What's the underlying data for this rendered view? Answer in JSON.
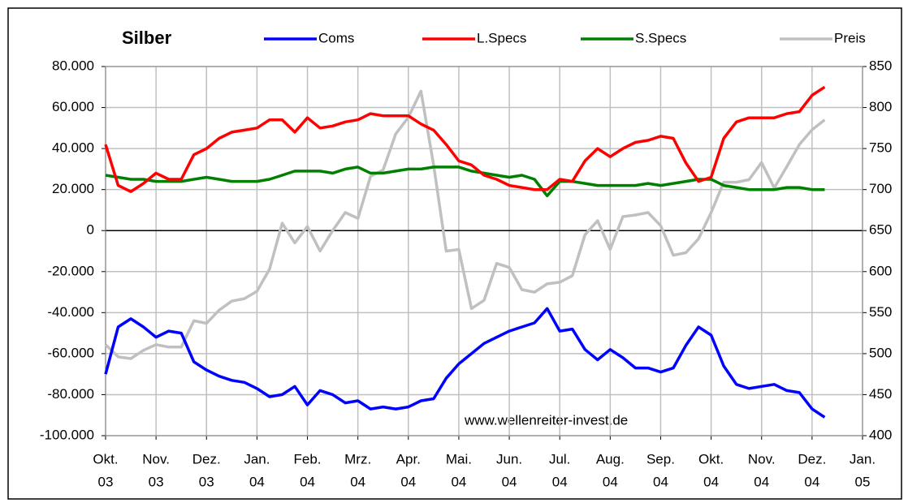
{
  "chart_data": {
    "type": "line",
    "title": "Silber",
    "annotation": "www.wellenreiter-invest.de",
    "x": [
      0,
      0.25,
      0.5,
      0.75,
      1,
      1.25,
      1.5,
      1.75,
      2,
      2.25,
      2.5,
      2.75,
      3,
      3.25,
      3.5,
      3.75,
      4,
      4.25,
      4.5,
      4.75,
      5,
      5.25,
      5.5,
      5.75,
      6,
      6.25,
      6.5,
      6.75,
      7,
      7.25,
      7.5,
      7.75,
      8,
      8.25,
      8.5,
      8.75,
      9,
      9.25,
      9.5,
      9.75,
      10,
      10.25,
      10.5,
      10.75,
      11,
      11.25,
      11.5,
      11.75,
      12,
      12.25,
      12.5,
      12.75,
      13,
      13.25,
      13.5,
      13.75,
      14,
      14.25
    ],
    "xlim": [
      0,
      15
    ],
    "xticks": [
      {
        "value": 0,
        "label": [
          "Okt.",
          "03"
        ]
      },
      {
        "value": 1,
        "label": [
          "Nov.",
          "03"
        ]
      },
      {
        "value": 2,
        "label": [
          "Dez.",
          "03"
        ]
      },
      {
        "value": 3,
        "label": [
          "Jan.",
          "04"
        ]
      },
      {
        "value": 4,
        "label": [
          "Feb.",
          "04"
        ]
      },
      {
        "value": 5,
        "label": [
          "Mrz.",
          "04"
        ]
      },
      {
        "value": 6,
        "label": [
          "Apr.",
          "04"
        ]
      },
      {
        "value": 7,
        "label": [
          "Mai.",
          "04"
        ]
      },
      {
        "value": 8,
        "label": [
          "Jun.",
          "04"
        ]
      },
      {
        "value": 9,
        "label": [
          "Jul.",
          "04"
        ]
      },
      {
        "value": 10,
        "label": [
          "Aug.",
          "04"
        ]
      },
      {
        "value": 11,
        "label": [
          "Sep.",
          "04"
        ]
      },
      {
        "value": 12,
        "label": [
          "Okt.",
          "04"
        ]
      },
      {
        "value": 13,
        "label": [
          "Nov.",
          "04"
        ]
      },
      {
        "value": 14,
        "label": [
          "Dez.",
          "04"
        ]
      },
      {
        "value": 15,
        "label": [
          "Jan.",
          "05"
        ]
      }
    ],
    "ylim": [
      -100000,
      80000
    ],
    "yticks": [
      {
        "value": -100000,
        "label": "-100.000"
      },
      {
        "value": -80000,
        "label": "-80.000"
      },
      {
        "value": -60000,
        "label": "-60.000"
      },
      {
        "value": -40000,
        "label": "-40.000"
      },
      {
        "value": -20000,
        "label": "-20.000"
      },
      0,
      {
        "value": 20000,
        "label": "20.000"
      },
      {
        "value": 40000,
        "label": "40.000"
      },
      {
        "value": 60000,
        "label": "60.000"
      },
      {
        "value": 80000,
        "label": "80.000"
      }
    ],
    "y2lim": [
      400,
      850
    ],
    "y2ticks": [
      400,
      450,
      500,
      550,
      600,
      650,
      700,
      750,
      800,
      850
    ],
    "grid": true,
    "series": [
      {
        "name": "Coms",
        "color": "#0000ff",
        "values": [
          -70000,
          -47000,
          -43000,
          -47000,
          -52000,
          -49000,
          -50000,
          -64000,
          -68000,
          -71000,
          -73000,
          -74000,
          -77000,
          -81000,
          -80000,
          -76000,
          -85000,
          -78000,
          -80000,
          -84000,
          -83000,
          -87000,
          -86000,
          -87000,
          -86000,
          -83000,
          -82000,
          -72000,
          -65000,
          -60000,
          -55000,
          -52000,
          -49000,
          -47000,
          -45000,
          -38000,
          -49000,
          -48000,
          -58000,
          -63000,
          -58000,
          -62000,
          -67000,
          -67000,
          -69000,
          -67000,
          -56000,
          -47000,
          -51000,
          -66000,
          -75000,
          -77000,
          -76000,
          -75000,
          -78000,
          -79000,
          -87000,
          -91000
        ]
      },
      {
        "name": "L.Specs",
        "color": "#ff0000",
        "values": [
          42000,
          22000,
          19000,
          23000,
          28000,
          25000,
          25000,
          37000,
          40000,
          45000,
          48000,
          49000,
          50000,
          54000,
          54000,
          48000,
          55000,
          50000,
          51000,
          53000,
          54000,
          57000,
          56000,
          56000,
          56000,
          52000,
          49000,
          42000,
          34000,
          32000,
          27000,
          25000,
          22000,
          21000,
          20000,
          20000,
          25000,
          24000,
          34000,
          40000,
          36000,
          40000,
          43000,
          44000,
          46000,
          45000,
          33000,
          24000,
          26000,
          45000,
          53000,
          55000,
          55000,
          55000,
          57000,
          58000,
          66000,
          70000
        ]
      },
      {
        "name": "S.Specs",
        "color": "#008000",
        "values": [
          27000,
          26000,
          25000,
          25000,
          24000,
          24000,
          24000,
          25000,
          26000,
          25000,
          24000,
          24000,
          24000,
          25000,
          27000,
          29000,
          29000,
          29000,
          28000,
          30000,
          31000,
          28000,
          28000,
          29000,
          30000,
          30000,
          31000,
          31000,
          31000,
          29000,
          28000,
          27000,
          26000,
          27000,
          25000,
          17000,
          24000,
          24000,
          23000,
          22000,
          22000,
          22000,
          22000,
          23000,
          22000,
          23000,
          24000,
          25000,
          25000,
          22000,
          21000,
          20000,
          20000,
          20000,
          21000,
          21000,
          20000,
          20000
        ]
      },
      {
        "name": "Preis",
        "color": "#c0c0c0",
        "axis": "y2",
        "values": [
          511,
          496,
          494,
          504,
          511,
          508,
          508,
          540,
          537,
          553,
          564,
          567,
          576,
          603,
          659,
          635,
          655,
          625,
          650,
          672,
          665,
          716,
          724,
          768,
          788,
          820,
          730,
          625,
          627,
          555,
          565,
          610,
          605,
          578,
          575,
          585,
          587,
          595,
          645,
          662,
          627,
          667,
          669,
          672,
          656,
          620,
          623,
          640,
          672,
          709,
          709,
          712,
          733,
          702,
          728,
          755,
          773,
          785
        ]
      }
    ]
  }
}
